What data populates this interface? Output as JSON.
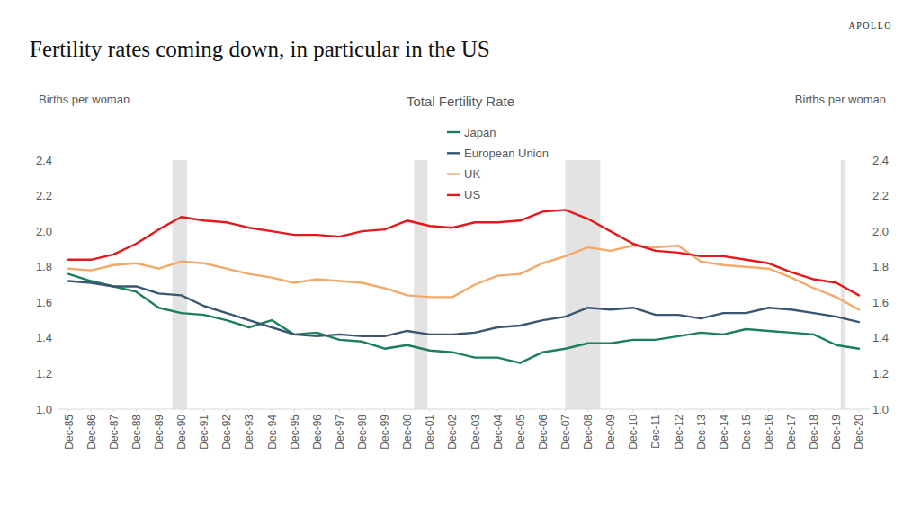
{
  "chart_data": {
    "type": "line",
    "title": "Fertility rates coming down, in particular in the US",
    "subtitle": "Total Fertility Rate",
    "logo": "APOLLO",
    "ylabel": "Births per woman",
    "y2label": "Births per woman",
    "categories": [
      "Dec-85",
      "Dec-86",
      "Dec-87",
      "Dec-88",
      "Dec-89",
      "Dec-90",
      "Dec-91",
      "Dec-92",
      "Dec-93",
      "Dec-94",
      "Dec-95",
      "Dec-96",
      "Dec-97",
      "Dec-98",
      "Dec-99",
      "Dec-00",
      "Dec-01",
      "Dec-02",
      "Dec-03",
      "Dec-04",
      "Dec-05",
      "Dec-06",
      "Dec-07",
      "Dec-08",
      "Dec-09",
      "Dec-10",
      "Dec-11",
      "Dec-12",
      "Dec-13",
      "Dec-14",
      "Dec-15",
      "Dec-16",
      "Dec-17",
      "Dec-18",
      "Dec-19",
      "Dec-20"
    ],
    "series": [
      {
        "name": "Japan",
        "color": "#1b7f5c",
        "values": [
          1.76,
          1.72,
          1.69,
          1.66,
          1.57,
          1.54,
          1.53,
          1.5,
          1.46,
          1.5,
          1.42,
          1.43,
          1.39,
          1.38,
          1.34,
          1.36,
          1.33,
          1.32,
          1.29,
          1.29,
          1.26,
          1.32,
          1.34,
          1.37,
          1.37,
          1.39,
          1.39,
          1.41,
          1.43,
          1.42,
          1.45,
          1.44,
          1.43,
          1.42,
          1.36,
          1.34
        ]
      },
      {
        "name": "European Union",
        "color": "#3b5672",
        "values": [
          1.72,
          1.71,
          1.69,
          1.69,
          1.65,
          1.64,
          1.58,
          1.54,
          1.5,
          1.46,
          1.42,
          1.41,
          1.42,
          1.41,
          1.41,
          1.44,
          1.42,
          1.42,
          1.43,
          1.46,
          1.47,
          1.5,
          1.52,
          1.57,
          1.56,
          1.57,
          1.53,
          1.53,
          1.51,
          1.54,
          1.54,
          1.57,
          1.56,
          1.54,
          1.52,
          1.49
        ]
      },
      {
        "name": "UK",
        "color": "#f2a96a",
        "values": [
          1.79,
          1.78,
          1.81,
          1.82,
          1.79,
          1.83,
          1.82,
          1.79,
          1.76,
          1.74,
          1.71,
          1.73,
          1.72,
          1.71,
          1.68,
          1.64,
          1.63,
          1.63,
          1.7,
          1.75,
          1.76,
          1.82,
          1.86,
          1.91,
          1.89,
          1.92,
          1.91,
          1.92,
          1.83,
          1.81,
          1.8,
          1.79,
          1.74,
          1.68,
          1.63,
          1.56
        ]
      },
      {
        "name": "US",
        "color": "#e3191c",
        "values": [
          1.84,
          1.84,
          1.87,
          1.93,
          2.01,
          2.08,
          2.06,
          2.05,
          2.02,
          2.0,
          1.98,
          1.98,
          1.97,
          2.0,
          2.01,
          2.06,
          2.03,
          2.02,
          2.05,
          2.05,
          2.06,
          2.11,
          2.12,
          2.07,
          2.0,
          1.93,
          1.89,
          1.88,
          1.86,
          1.86,
          1.84,
          1.82,
          1.77,
          1.73,
          1.71,
          1.64
        ]
      }
    ],
    "recession_bands": [
      [
        4.6,
        5.25
      ],
      [
        15.3,
        15.9
      ],
      [
        22.0,
        23.55
      ],
      [
        34.2,
        34.4
      ]
    ],
    "ylim": [
      1,
      2.4
    ],
    "yticks": [
      {
        "value": 1,
        "label": "1.0"
      },
      1.2,
      1.4,
      1.6,
      1.8,
      {
        "value": 2,
        "label": "2.0"
      },
      2.2,
      2.4
    ],
    "y2lim": [
      1,
      2.4
    ],
    "y2ticks": [
      {
        "value": 1,
        "label": "1.0"
      },
      1.2,
      1.4,
      1.6,
      1.8,
      {
        "value": 2,
        "label": "2.0"
      },
      2.2,
      2.4
    ],
    "grid": false,
    "legend": "top"
  }
}
